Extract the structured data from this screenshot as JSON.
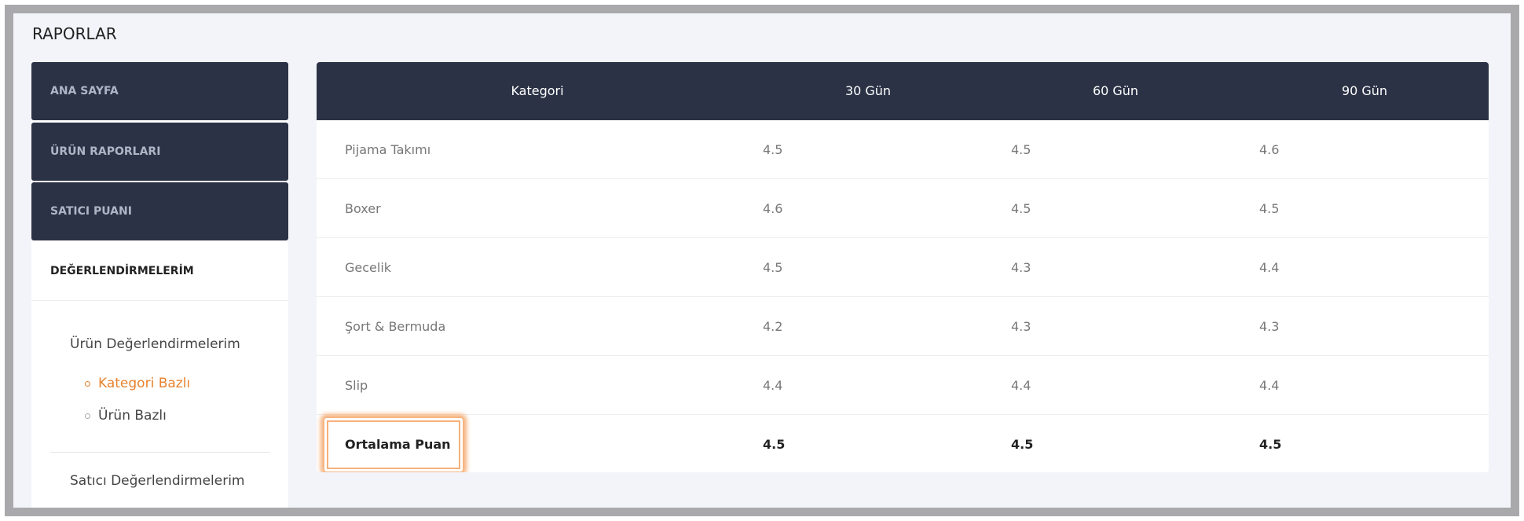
{
  "header": {
    "title": "RAPORLAR"
  },
  "sidebar": {
    "items": [
      "ANA SAYFA",
      "ÜRÜN RAPORLARI",
      "SATICI PUANI"
    ],
    "active_item": "DEĞERLENDİRMELERİM",
    "submenu": {
      "title": "Ürün Değerlendirmelerim",
      "links": [
        "Kategori Bazlı",
        "Ürün Bazlı"
      ]
    },
    "footer_item": "Satıcı Değerlendirmelerim"
  },
  "table": {
    "columns": [
      "Kategori",
      "30 Gün",
      "60 Gün",
      "90 Gün"
    ],
    "rows": [
      [
        "Pijama Takımı",
        "4.5",
        "4.5",
        "4.6"
      ],
      [
        "Boxer",
        "4.6",
        "4.5",
        "4.5"
      ],
      [
        "Gecelik",
        "4.5",
        "4.3",
        "4.4"
      ],
      [
        "Şort & Bermuda",
        "4.2",
        "4.3",
        "4.3"
      ],
      [
        "Slip",
        "4.4",
        "4.4",
        "4.4"
      ]
    ],
    "summary": [
      "Ortalama Puan",
      "4.5",
      "4.5",
      "4.5"
    ]
  }
}
